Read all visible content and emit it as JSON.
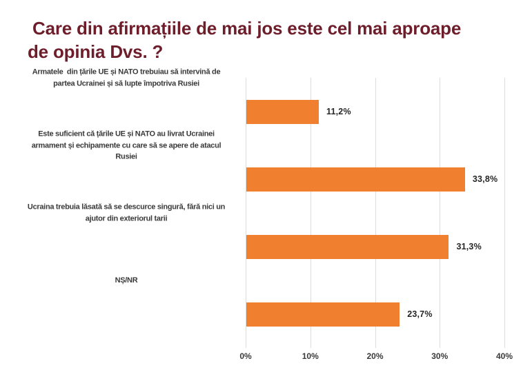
{
  "slide": {
    "title_line1": " Care din afirmațiile de mai jos este cel mai aproape",
    "title_line2": "de opinia Dvs. ?",
    "title_color": "#6e1e2b"
  },
  "chart_data": {
    "type": "bar",
    "orientation": "horizontal",
    "title": "Care din afirmațiile de mai jos este cel mai aproape de opinia Dvs. ?",
    "categories": [
      "Armatele  din țările UE și NATO trebuiau să intervină de partea Ucrainei și să lupte împotriva Rusiei",
      "Este suficient că țările UE și NATO au livrat Ucrainei armament și echipamente cu care să se apere de atacul Rusiei",
      "Ucraina trebuia lăsată să se descurce singură, fără nici un ajutor din exteriorul tarii",
      "NȘ/NR"
    ],
    "category_lines": [
      [
        "Armatele  din țările UE și NATO trebuiau să intervină de",
        "partea Ucrainei și să lupte împotriva Rusiei"
      ],
      [
        "Este suficient că țările UE și NATO au livrat Ucrainei",
        "armament și echipamente cu care să se apere de atacul",
        "Rusiei"
      ],
      [
        "Ucraina trebuia lăsată să se descurce singură, fără nici un",
        "ajutor din exteriorul tarii"
      ],
      [
        "NȘ/NR"
      ]
    ],
    "values": [
      11.2,
      33.8,
      31.3,
      23.7
    ],
    "value_labels": [
      "11,2%",
      "33,8%",
      "31,3%",
      "23,7%"
    ],
    "xlabel": "",
    "ylabel": "",
    "xlim": [
      0,
      40
    ],
    "x_ticks": [
      0,
      10,
      20,
      30,
      40
    ],
    "x_tick_labels": [
      "0%",
      "10%",
      "20%",
      "30%",
      "40%"
    ],
    "grid": true,
    "legend": false,
    "bar_color": "#f0802f",
    "gridline_color": "#dcdcdc"
  }
}
